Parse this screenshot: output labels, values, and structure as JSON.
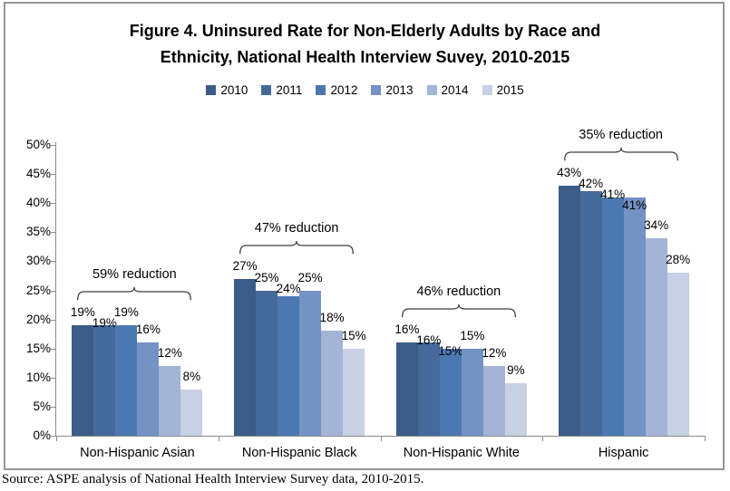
{
  "title": {
    "line1": "Figure 4. Uninsured Rate for Non-Elderly Adults by Race and",
    "line2": "Ethnicity, National Health Interview Suvey, 2010-2015"
  },
  "source": "Source: ASPE analysis of National Health Interview Survey data, 2010-2015.",
  "colors": {
    "frame_border": "#969696",
    "axis": "#8C8C8C",
    "bracket": "#3F3F3F",
    "text": "#000000"
  },
  "chart_data": {
    "type": "bar",
    "title": "Figure 4. Uninsured Rate for Non-Elderly Adults by Race and Ethnicity, National Health Interview Suvey, 2010-2015",
    "categories": [
      "Non-Hispanic Asian",
      "Non-Hispanic Black",
      "Non-Hispanic White",
      "Hispanic"
    ],
    "series": [
      {
        "name": "2010",
        "color": "#3B5C87",
        "values": [
          19,
          27,
          16,
          43
        ]
      },
      {
        "name": "2011",
        "color": "#45699A",
        "values": [
          19,
          25,
          16,
          42
        ]
      },
      {
        "name": "2012",
        "color": "#4C78B2",
        "values": [
          19,
          24,
          15,
          41
        ]
      },
      {
        "name": "2013",
        "color": "#7492C4",
        "values": [
          16,
          25,
          15,
          41
        ]
      },
      {
        "name": "2014",
        "color": "#A3B4D6",
        "values": [
          12,
          18,
          12,
          34
        ]
      },
      {
        "name": "2015",
        "color": "#C7D0E4",
        "values": [
          8,
          15,
          9,
          28
        ]
      }
    ],
    "value_label_format": "{v}%",
    "annotations": [
      {
        "category_index": 0,
        "label": "59% reduction"
      },
      {
        "category_index": 1,
        "label": "47% reduction"
      },
      {
        "category_index": 2,
        "label": "46% reduction"
      },
      {
        "category_index": 3,
        "label": "35% reduction"
      }
    ],
    "y_axis": {
      "min": 0,
      "max": 50,
      "step": 5,
      "tick_format": "{v}%"
    },
    "grid": false,
    "legend_position": "top"
  }
}
